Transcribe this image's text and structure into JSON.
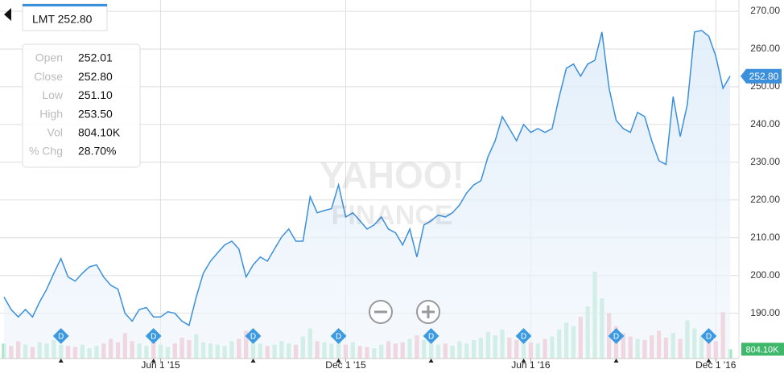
{
  "quote": {
    "symbol_price": "LMT 252.80",
    "rows": [
      [
        "Open",
        "252.01"
      ],
      [
        "Close",
        "252.80"
      ],
      [
        "Low",
        "251.10"
      ],
      [
        "High",
        "253.50"
      ],
      [
        "Vol",
        "804.10K"
      ],
      [
        "% Chg",
        "28.70%"
      ]
    ]
  },
  "watermark": [
    "YAHOO!",
    "FINANCE"
  ],
  "chart_data": {
    "type": "line",
    "categories": [
      null,
      null,
      null,
      null,
      null,
      null,
      null,
      null,
      null,
      null,
      null,
      null,
      null,
      null,
      null,
      null,
      null,
      null,
      null,
      null,
      null,
      null,
      "Jun 1 '15",
      null,
      null,
      null,
      null,
      null,
      null,
      null,
      null,
      null,
      null,
      null,
      null,
      null,
      null,
      null,
      null,
      null,
      null,
      null,
      null,
      null,
      null,
      null,
      null,
      null,
      "Dec 1 '15",
      null,
      null,
      null,
      null,
      null,
      null,
      null,
      null,
      null,
      null,
      null,
      null,
      null,
      null,
      null,
      null,
      null,
      null,
      null,
      null,
      null,
      null,
      null,
      null,
      null,
      "Jun 1 '16",
      null,
      null,
      null,
      null,
      null,
      null,
      null,
      null,
      null,
      null,
      null,
      null,
      null,
      null,
      null,
      null,
      null,
      null,
      null,
      null,
      null,
      null,
      null,
      null,
      null,
      "Dec 1 '16",
      null,
      null
    ],
    "series": [
      {
        "name": "LMT",
        "color": "#3b8fdb",
        "values": [
          194.3,
          191,
          189,
          191,
          189,
          193,
          196.4,
          200.6,
          204.5,
          199.6,
          198.5,
          200.6,
          202.3,
          202.8,
          199.6,
          197.4,
          196.4,
          190,
          187.9,
          191,
          191.5,
          189,
          189,
          190.4,
          190,
          187.9,
          186.8,
          194.3,
          200.6,
          203.8,
          206,
          208.1,
          209.1,
          207,
          199.6,
          202.8,
          204.9,
          203.8,
          207,
          210.2,
          212.3,
          209.1,
          209.1,
          220.9,
          216.6,
          217.2,
          217.7,
          224,
          215.5,
          216.6,
          214.5,
          212.3,
          213.4,
          215.5,
          212.3,
          211.3,
          208.1,
          212.3,
          204.9,
          213.4,
          214.5,
          216,
          215.5,
          216.6,
          218.7,
          221.9,
          224,
          225.1,
          231.5,
          235.7,
          242.1,
          238.9,
          235.7,
          240,
          237.9,
          238.9,
          237.9,
          238.9,
          247.4,
          254.9,
          256,
          252.8,
          256,
          257,
          264.5,
          249.6,
          241.1,
          238.9,
          237.9,
          243.2,
          242.1,
          235.7,
          230.4,
          229.4,
          247.4,
          236.8,
          245.3,
          264.5,
          264.9,
          263.4,
          258.1,
          249.6,
          252.8
        ]
      },
      {
        "name": "Vol",
        "axis": "y2",
        "up_color": "#a9e5c3",
        "down_color": "#f3aab3",
        "values": [
          1300,
          1100,
          1500,
          1200,
          1000,
          1400,
          1300,
          1600,
          1200,
          1100,
          1000,
          1200,
          900,
          1100,
          1300,
          1700,
          1400,
          2200,
          1500,
          1300,
          1100,
          1500,
          1200,
          1000,
          1300,
          1800,
          1600,
          2100,
          1400,
          1300,
          1200,
          1100,
          1500,
          1700,
          2400,
          1400,
          1300,
          1100,
          1200,
          1500,
          1300,
          1200,
          1900,
          2600,
          1500,
          1400,
          1300,
          1600,
          1200,
          1400,
          1100,
          1000,
          900,
          1200,
          1500,
          1300,
          1400,
          1700,
          2000,
          1600,
          1400,
          1200,
          1300,
          1100,
          1500,
          1300,
          1600,
          1800,
          2300,
          2000,
          2500,
          1800,
          1600,
          1500,
          1400,
          1300,
          1700,
          1900,
          2500,
          3100,
          2800,
          3600,
          4500,
          7500,
          5200,
          3900,
          2800,
          2200,
          1900,
          1700,
          1600,
          2000,
          2400,
          1800,
          2200,
          1700,
          3300,
          2600,
          1900,
          1600,
          1500,
          4000,
          804.1
        ]
      }
    ],
    "dividends": {
      "label": "D",
      "color": "#3b9ae1",
      "at": [
        8,
        21,
        35,
        47,
        60,
        73,
        86,
        99
      ]
    },
    "ylim": [
      178,
      270
    ],
    "yticks": [
      {
        "value": 190,
        "label": "190.00"
      },
      {
        "value": 200,
        "label": "200.00"
      },
      {
        "value": 210,
        "label": "210.00"
      },
      {
        "value": 220,
        "label": "220.00"
      },
      {
        "value": 230,
        "label": "230.00"
      },
      {
        "value": 240,
        "label": "240.00"
      },
      {
        "value": 250,
        "label": "250.00"
      },
      {
        "value": 260,
        "label": "260.00"
      },
      {
        "value": 270,
        "label": "270.00"
      }
    ],
    "y2lim": [
      0,
      30000
    ],
    "grid": true
  }
}
